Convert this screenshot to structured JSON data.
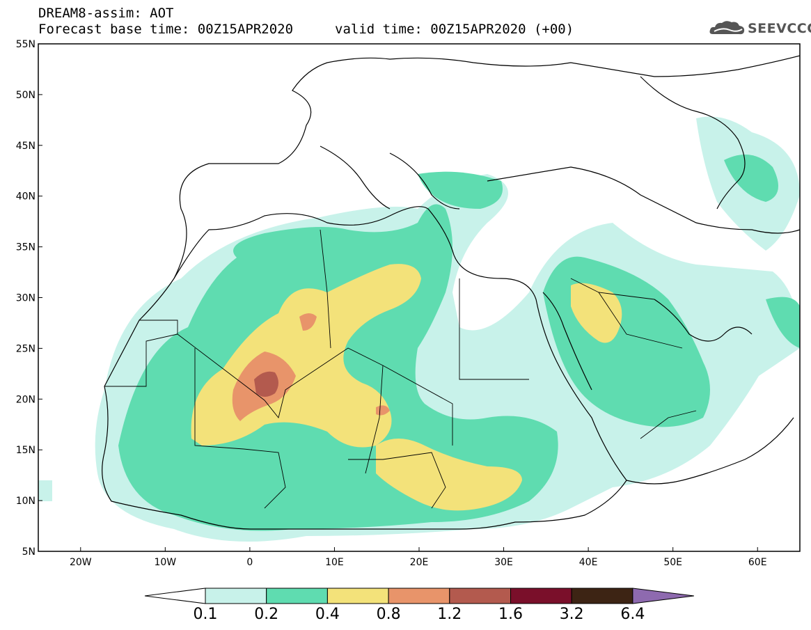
{
  "header": {
    "title": "DREAM8-assim: AOT",
    "base_time": "Forecast base time: 00Z15APR2020",
    "valid_time": "valid time: 00Z15APR2020 (+00)"
  },
  "logo": {
    "text": "SEEVCCC",
    "icon": "cloud-icon"
  },
  "axes": {
    "lat_labels": [
      "55N",
      "50N",
      "45N",
      "40N",
      "35N",
      "30N",
      "25N",
      "20N",
      "15N",
      "10N",
      "5N"
    ],
    "lon_labels": [
      "20W",
      "10W",
      "0",
      "10E",
      "20E",
      "30E",
      "40E",
      "50E",
      "60E"
    ],
    "lat_range": [
      5,
      55
    ],
    "lon_range": [
      -25,
      65
    ]
  },
  "colorbar": {
    "labels": [
      "0.1",
      "0.2",
      "0.4",
      "0.8",
      "1.2",
      "1.6",
      "3.2",
      "6.4"
    ],
    "colors": [
      "#ffffff",
      "#c8f2ea",
      "#5fdcb0",
      "#f3e27a",
      "#e8946a",
      "#b35a4e",
      "#7a0f2a",
      "#3d2414",
      "#8e6aaf"
    ]
  },
  "levels": {
    "c1": "#c8f2ea",
    "c2": "#5fdcb0",
    "c3": "#f3e27a",
    "c4": "#e8946a",
    "c5": "#b35a4e"
  }
}
